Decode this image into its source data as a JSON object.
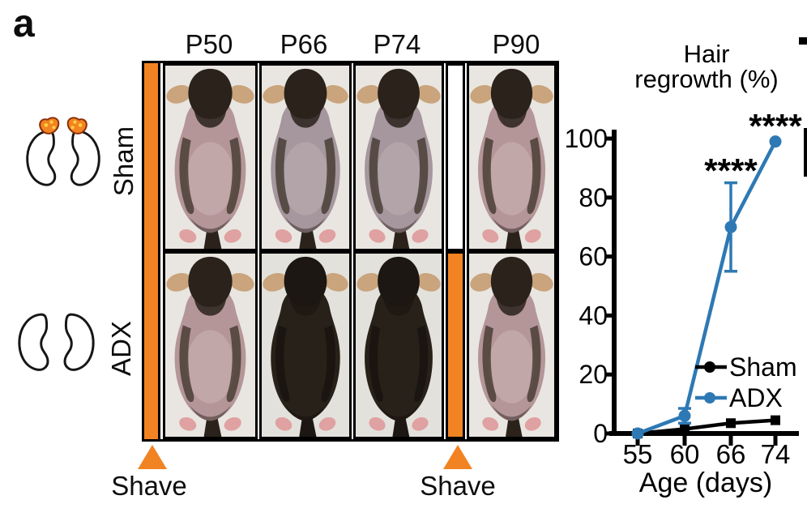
{
  "panel_label": "a",
  "colors": {
    "orange": "#F28322",
    "blue": "#2E79B4",
    "black": "#000000"
  },
  "anatomy_rows": [
    {
      "label": "Sham",
      "adrenal_glands": true
    },
    {
      "label": "ADX",
      "adrenal_glands": false
    }
  ],
  "photo_grid": {
    "column_headers": [
      "P50",
      "P66",
      "P74",
      "P90"
    ],
    "rows": [
      {
        "group": "Sham",
        "photos": [
          {
            "timepoint": "P50",
            "state": "shaved-pink"
          },
          {
            "timepoint": "P66",
            "state": "shaved-gray"
          },
          {
            "timepoint": "P74",
            "state": "shaved-gray"
          },
          {
            "timepoint": "P90",
            "state": "shaved-pink"
          }
        ]
      },
      {
        "group": "ADX",
        "photos": [
          {
            "timepoint": "P50",
            "state": "shaved-pink"
          },
          {
            "timepoint": "P66",
            "state": "furred"
          },
          {
            "timepoint": "P74",
            "state": "furred"
          },
          {
            "timepoint": "P90",
            "state": "shaved-pink"
          }
        ]
      }
    ],
    "shave_labels": [
      "Shave",
      "Shave"
    ]
  },
  "chart_data": {
    "type": "line",
    "title": "Hair regrowth (%)",
    "title_lines": [
      "Hair",
      "regrowth (%)"
    ],
    "xlabel": "Age (days)",
    "ylabel": "",
    "x_categories": [
      "55",
      "60",
      "66",
      "74"
    ],
    "ylim": [
      0,
      100
    ],
    "yticks": [
      0,
      20,
      40,
      60,
      80,
      100
    ],
    "grid": false,
    "legend_position": "inside-right",
    "series": [
      {
        "name": "Sham",
        "color": "#000000",
        "marker": "square",
        "values": [
          0,
          1.5,
          3.5,
          4.5
        ],
        "errors": [
          0,
          0,
          0,
          0
        ]
      },
      {
        "name": "ADX",
        "color": "#2E79B4",
        "marker": "circle",
        "values": [
          0,
          6,
          70,
          99
        ],
        "errors": [
          0,
          2.5,
          15,
          0
        ]
      }
    ],
    "annotations": [
      {
        "text": "****",
        "x_index": 2,
        "value": 91
      },
      {
        "text": "****",
        "x_index": 3,
        "value": 106
      }
    ]
  }
}
